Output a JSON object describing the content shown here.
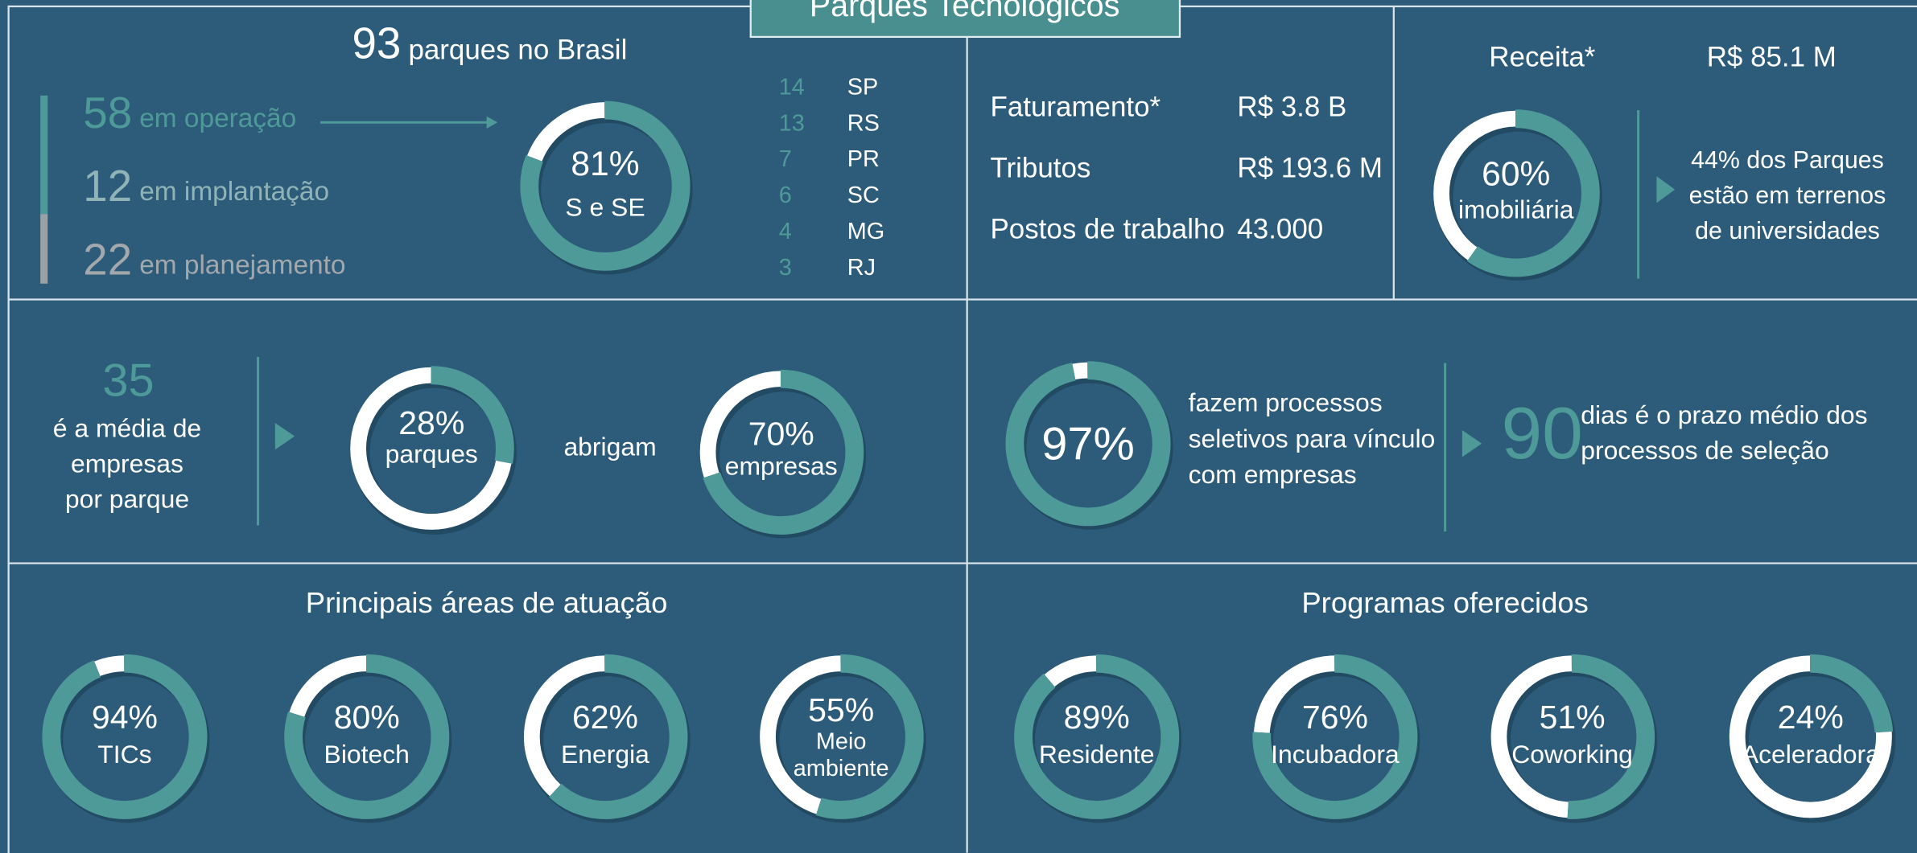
{
  "title": "Parques Tecnológicos",
  "overview": {
    "total": "93",
    "total_label": "parques no Brasil",
    "status": [
      {
        "value": "58",
        "label": "em operação"
      },
      {
        "value": "12",
        "label": "em implantação"
      },
      {
        "value": "22",
        "label": "em planejamento"
      }
    ],
    "donut": {
      "value": 81,
      "label": "81%",
      "caption": [
        "S e SE"
      ]
    },
    "states": [
      {
        "count": "14",
        "state": "SP"
      },
      {
        "count": "13",
        "state": "RS"
      },
      {
        "count": "7",
        "state": "PR"
      },
      {
        "count": "6",
        "state": "SC"
      },
      {
        "count": "4",
        "state": "MG"
      },
      {
        "count": "3",
        "state": "RJ"
      }
    ]
  },
  "economics": {
    "rows": [
      {
        "label": "Faturamento*",
        "value": "R$ 3.8 B"
      },
      {
        "label": "Tributos",
        "value": "R$ 193.6 M"
      },
      {
        "label": "Postos de trabalho",
        "value": "43.000"
      }
    ]
  },
  "revenue": {
    "label": "Receita*",
    "value": "R$ 85.1 M",
    "donut": {
      "value": 60,
      "label": "60%",
      "caption": [
        "imobiliária"
      ]
    },
    "note": [
      "44% dos Parques",
      "estão em terrenos",
      "de universidades"
    ]
  },
  "companies": {
    "average": "35",
    "average_text": [
      "é a média de",
      "empresas",
      "por parque"
    ],
    "donut_parks": {
      "value": 28,
      "label": "28%",
      "caption": [
        "parques"
      ]
    },
    "connector": "abrigam",
    "donut_companies": {
      "value": 70,
      "label": "70%",
      "caption": [
        "empresas"
      ]
    }
  },
  "selection": {
    "donut": {
      "value": 97,
      "label": "97%",
      "caption": []
    },
    "text": [
      "fazem processos",
      "seletivos para vínculo",
      "com empresas"
    ],
    "days": "90",
    "days_text": [
      "dias é o prazo médio dos",
      "processos de seleção"
    ]
  },
  "areas": {
    "title": "Principais áreas de atuação",
    "items": [
      {
        "value": 94,
        "label": "94%",
        "caption": [
          "TICs"
        ]
      },
      {
        "value": 80,
        "label": "80%",
        "caption": [
          "Biotech"
        ]
      },
      {
        "value": 62,
        "label": "62%",
        "caption": [
          "Energia"
        ]
      },
      {
        "value": 55,
        "label": "55%",
        "caption": [
          "Meio",
          "ambiente"
        ]
      }
    ]
  },
  "programs": {
    "title": "Programas oferecidos",
    "items": [
      {
        "value": 89,
        "label": "89%",
        "caption": [
          "Residente"
        ]
      },
      {
        "value": 76,
        "label": "76%",
        "caption": [
          "Incubadora"
        ]
      },
      {
        "value": 51,
        "label": "51%",
        "caption": [
          "Coworking"
        ]
      },
      {
        "value": 24,
        "label": "24%",
        "caption": [
          "Aceleradora"
        ]
      }
    ]
  }
}
